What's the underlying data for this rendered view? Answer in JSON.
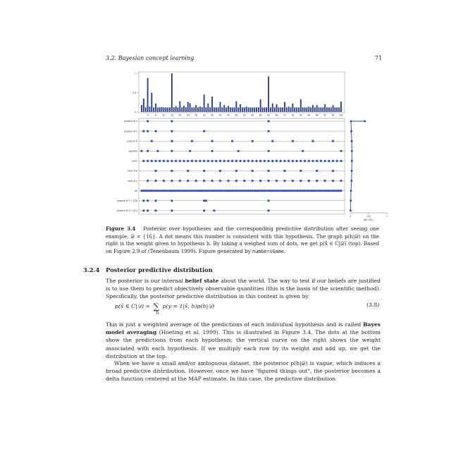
{
  "header": {
    "section": "3.2. Bayesian concept learning",
    "page_number": "71"
  },
  "chart_data": [
    {
      "type": "bar",
      "title": "",
      "xlabel": "",
      "ylabel": "",
      "ylim": [
        0,
        1
      ],
      "yticks": [
        "0",
        "0.5",
        "1"
      ],
      "xticks": [
        "4",
        "8",
        "12",
        "16",
        "20",
        "24",
        "28",
        "32",
        "36",
        "40",
        "44",
        "48",
        "52",
        "56",
        "60",
        "64",
        "68",
        "72",
        "76",
        "80",
        "84",
        "88",
        "92",
        "96",
        "100"
      ],
      "x": [
        1,
        2,
        3,
        4,
        5,
        6,
        7,
        8,
        9,
        10,
        11,
        12,
        13,
        14,
        15,
        16,
        17,
        18,
        19,
        20,
        21,
        22,
        23,
        24,
        25,
        26,
        27,
        28,
        29,
        30,
        31,
        32,
        33,
        34,
        35,
        36,
        37,
        38,
        39,
        40,
        41,
        42,
        43,
        44,
        45,
        46,
        47,
        48,
        49,
        50,
        51,
        52,
        53,
        54,
        55,
        56,
        57,
        58,
        59,
        60,
        61,
        62,
        63,
        64,
        65,
        66,
        67,
        68,
        69,
        70,
        71,
        72,
        73,
        74,
        75,
        76,
        77,
        78,
        79,
        80,
        81,
        82,
        83,
        84,
        85,
        86,
        87,
        88,
        89,
        90,
        91,
        92,
        93,
        94,
        95,
        96,
        97,
        98,
        99,
        100
      ],
      "values": [
        0.18,
        0.35,
        0.12,
        0.88,
        0.14,
        0.5,
        0.12,
        0.22,
        0.12,
        0.12,
        0.13,
        0.12,
        0.12,
        0.12,
        0.12,
        1.0,
        0.12,
        0.15,
        0.12,
        0.28,
        0.12,
        0.16,
        0.12,
        0.26,
        0.23,
        0.12,
        0.12,
        0.18,
        0.12,
        0.14,
        0.12,
        0.45,
        0.12,
        0.22,
        0.12,
        0.4,
        0.12,
        0.12,
        0.12,
        0.26,
        0.12,
        0.18,
        0.12,
        0.16,
        0.12,
        0.12,
        0.12,
        0.28,
        0.12,
        0.2,
        0.12,
        0.12,
        0.14,
        0.12,
        0.12,
        0.12,
        0.12,
        0.12,
        0.12,
        0.33,
        0.12,
        0.12,
        0.12,
        0.92,
        0.12,
        0.22,
        0.12,
        0.2,
        0.12,
        0.12,
        0.12,
        0.26,
        0.12,
        0.14,
        0.12,
        0.22,
        0.12,
        0.12,
        0.12,
        0.33,
        0.12,
        0.12,
        0.12,
        0.14,
        0.12,
        0.18,
        0.12,
        0.18,
        0.12,
        0.12,
        0.12,
        0.2,
        0.12,
        0.12,
        0.12,
        0.18,
        0.12,
        0.12,
        0.12,
        0.27
      ]
    },
    {
      "type": "scatter",
      "title": "",
      "hypotheses": [
        {
          "label": "powers of 4",
          "x": [
            4,
            16,
            64
          ]
        },
        {
          "label": "powers of 2",
          "x": [
            2,
            4,
            8,
            16,
            32,
            64
          ]
        },
        {
          "label": "ends in 6",
          "x": [
            6,
            16,
            26,
            36,
            46,
            56,
            66,
            76,
            86,
            96
          ]
        },
        {
          "label": "squares",
          "x": [
            1,
            4,
            9,
            16,
            25,
            36,
            49,
            64,
            81,
            100
          ]
        },
        {
          "label": "even",
          "x": [
            2,
            4,
            6,
            8,
            10,
            12,
            14,
            16,
            18,
            20,
            22,
            24,
            26,
            28,
            30,
            32,
            34,
            36,
            38,
            40,
            42,
            44,
            46,
            48,
            50,
            52,
            54,
            56,
            58,
            60,
            62,
            64,
            66,
            68,
            70,
            72,
            74,
            76,
            78,
            80,
            82,
            84,
            86,
            88,
            90,
            92,
            94,
            96,
            98,
            100
          ]
        },
        {
          "label": "mult of 8",
          "x": [
            8,
            16,
            24,
            32,
            40,
            48,
            56,
            64,
            72,
            80,
            88,
            96
          ]
        },
        {
          "label": "mult of 4",
          "x": [
            4,
            8,
            12,
            16,
            20,
            24,
            28,
            32,
            36,
            40,
            44,
            48,
            52,
            56,
            60,
            64,
            68,
            72,
            76,
            80,
            84,
            88,
            92,
            96,
            100
          ]
        },
        {
          "label": "all",
          "x": [
            1,
            2,
            3,
            4,
            5,
            6,
            7,
            8,
            9,
            10,
            11,
            12,
            13,
            14,
            15,
            16,
            17,
            18,
            19,
            20,
            21,
            22,
            23,
            24,
            25,
            26,
            27,
            28,
            29,
            30,
            31,
            32,
            33,
            34,
            35,
            36,
            37,
            38,
            39,
            40,
            41,
            42,
            43,
            44,
            45,
            46,
            47,
            48,
            49,
            50,
            51,
            52,
            53,
            54,
            55,
            56,
            57,
            58,
            59,
            60,
            61,
            62,
            63,
            64,
            65,
            66,
            67,
            68,
            69,
            70,
            71,
            72,
            73,
            74,
            75,
            76,
            77,
            78,
            79,
            80,
            81,
            82,
            83,
            84,
            85,
            86,
            87,
            88,
            89,
            90,
            91,
            92,
            93,
            94,
            95,
            96,
            97,
            98,
            99,
            100
          ]
        },
        {
          "label": "powers of 2 + {33}",
          "x": [
            2,
            4,
            8,
            16,
            32,
            33,
            64
          ]
        },
        {
          "label": "powers of 2 + {37}",
          "x": [
            2,
            4,
            8,
            16,
            32,
            37,
            64
          ]
        }
      ]
    },
    {
      "type": "line",
      "title": "",
      "xlabel": "p(h | 16 )",
      "xticks": [
        "0",
        "0.5",
        "1"
      ],
      "xlim": [
        0,
        1
      ],
      "x": [
        0.015,
        0.02,
        0.03,
        0.04,
        0.045,
        0.045,
        0.04,
        0.035,
        0.02,
        0.015,
        0.01
      ],
      "y": [
        "top",
        "powers of 4",
        "powers of 2",
        "ends in 6",
        "squares",
        "even",
        "mult of 8",
        "mult of 4",
        "all",
        "powers of 2 + {33}",
        "powers of 2 + {37}"
      ]
    }
  ],
  "caption": {
    "label": "Figure 3.4",
    "s1": "Posterior over hypotheses and the corresponding predictive distribution after seeing one example, 𝒟 = {16}. A dot means this number is consistent with this hypothesis. The graph p(h|𝒟) on the right is the weight given to hypothesis h. By taking a weighed sum of dots, we get p(x̃ ∈ C|𝒟) (top). Based on Figure 2.9 of (Tenenbaum 1999). Figure generated by",
    "code": "numbersGame",
    "end": "."
  },
  "section": {
    "number": "3.2.4",
    "title": "Posterior predictive distribution"
  },
  "para1": {
    "a": "The posterior is our internal",
    "b": "belief state",
    "c": "about the world. The way to test if our beliefs are justified is to use them to predict objectively observable quantities (this is the basis of the scientific method). Specifically, the posterior predictive distribution in this context is given by"
  },
  "equation": {
    "lhs": "p(x̃ ∈ C|𝒟) =",
    "sum": "∑",
    "sub": "h",
    "rhs": "p(y = 1|x̃, h)p(h|𝒟)",
    "number": "(3.8)"
  },
  "para2": {
    "a": "This is just a weighted average of the predictions of each individual hypothesis and is called",
    "b": "Bayes model averaging",
    "c": "(Hoeting et al. 1999). This is illustrated in Figure 3.4. The dots at the bottom show the predictions from each hypothesis; the vertical curve on the right shows the weight associated with each hypothesis. If we multiply each row by its weight and add up, we get the distribution at the top."
  },
  "para3": "When we have a small and/or ambiguous dataset, the posterior p(h|𝒟) is vague, which induces a broad predictive distribution. However, once we have \"figured things out\", the posterior becomes a delta function centered at the MAP estimate. In this case, the predictive distribution"
}
